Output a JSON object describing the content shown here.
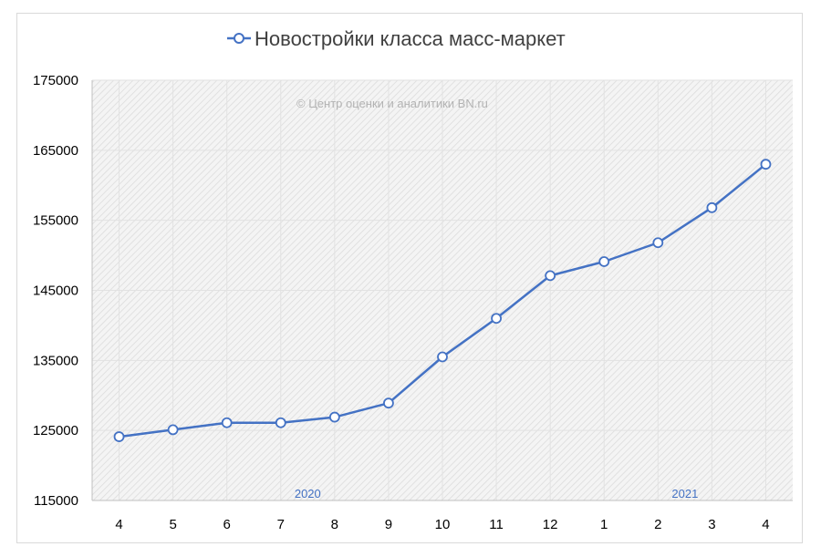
{
  "chart_data": {
    "type": "line",
    "title": "",
    "legend": {
      "placement": "top",
      "entries": [
        "Новостройки класса масс-маркет"
      ]
    },
    "watermark": "© Центр оценки и аналитики BN.ru",
    "categories": [
      "4",
      "5",
      "6",
      "7",
      "8",
      "9",
      "10",
      "11",
      "12",
      "1",
      "2",
      "3",
      "4"
    ],
    "year_labels": [
      {
        "label": "2020",
        "category_index": 3.5
      },
      {
        "label": "2021",
        "category_index": 10.5
      }
    ],
    "series": [
      {
        "name": "Новостройки класса масс-маркет",
        "color": "#4472c4",
        "marker": "circle-hollow",
        "values": [
          124100,
          125100,
          126100,
          126100,
          126900,
          128900,
          135500,
          141000,
          147100,
          149100,
          151800,
          156800,
          163000
        ]
      }
    ],
    "ylim": [
      115000,
      175000
    ],
    "yticks": [
      "175000",
      "165000",
      "155000",
      "145000",
      "135000",
      "125000",
      "115000"
    ],
    "xlabel": "",
    "ylabel": "",
    "grid": true,
    "plot_background": "hatched-gray"
  }
}
